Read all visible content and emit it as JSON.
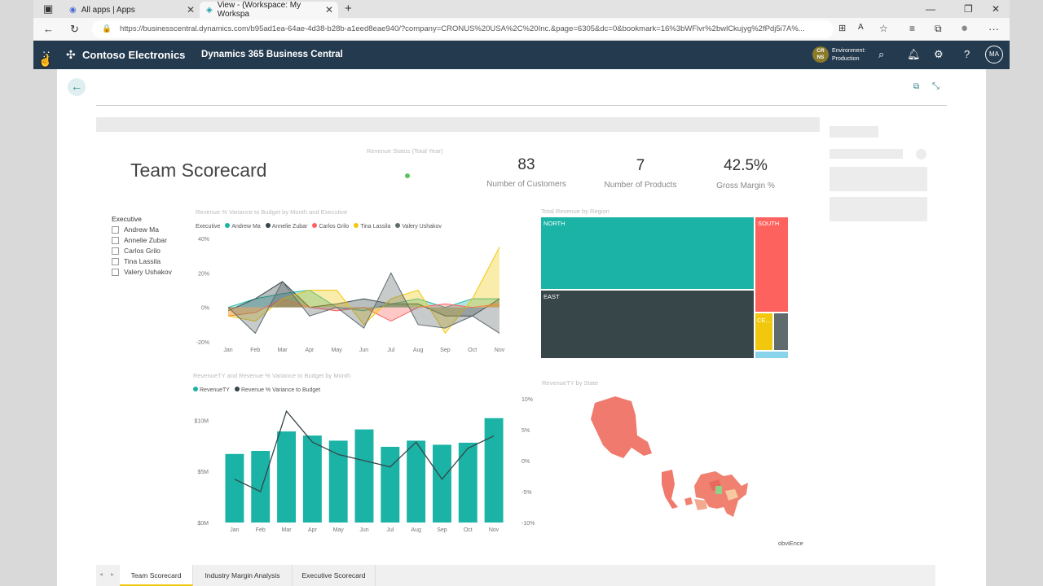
{
  "browser": {
    "tabs": [
      {
        "label": "All apps | Apps"
      },
      {
        "label": "View - (Workspace: My Workspa"
      }
    ],
    "url": "https://businesscentral.dynamics.com/b95ad1ea-64ae-4d38-b28b-a1eed8eae940/?company=CRONUS%20USA%2C%20Inc.&page=6305&dc=0&bookmark=16%3bWFlvr%2bwlCkujyg%2fPdj5i7A%..."
  },
  "appbar": {
    "brand": "Contoso Electronics",
    "product": "Dynamics 365 Business Central",
    "env_badge": "CR NS",
    "env_label": "Environment:",
    "env_value": "Production",
    "avatar": "MA"
  },
  "report": {
    "title": "Team Scorecard",
    "revenue_status_title": "Revenue Status (Total Year)",
    "kpis": [
      {
        "value": "83",
        "label": "Number of Customers"
      },
      {
        "value": "7",
        "label": "Number of Products"
      },
      {
        "value": "42.5%",
        "label": "Gross Margin %"
      }
    ],
    "slicer": {
      "title": "Executive",
      "items": [
        "Andrew Ma",
        "Annelie Zubar",
        "Carlos Grilo",
        "Tina Lassila",
        "Valery Ushakov"
      ]
    },
    "line_chart_title": "Revenue % Variance to Budget by Month and Executive",
    "line_legend_title": "Executive",
    "bar_chart_title": "RevenueTY and Revenue % Variance to Budget by Month",
    "treemap_title": "Total Revenue by Region",
    "map_title": "RevenueTY by State",
    "watermark": "obviEnce"
  },
  "page_tabs": [
    "Team Scorecard",
    "Industry Margin Analysis",
    "Executive Scorecard"
  ],
  "colors": {
    "teal": "#1ab3a6",
    "dark": "#374649",
    "red": "#fd625e",
    "yellow": "#f2c80f",
    "gray": "#5f6b6d",
    "appbar": "#243a4e"
  },
  "chart_data": [
    {
      "type": "line",
      "title": "Revenue % Variance to Budget by Month and Executive",
      "categories": [
        "Jan",
        "Feb",
        "Mar",
        "Apr",
        "May",
        "Jun",
        "Jul",
        "Aug",
        "Sep",
        "Oct",
        "Nov"
      ],
      "ylim": [
        -20,
        40
      ],
      "y_ticks": [
        "40%",
        "20%",
        "0%",
        "-20%"
      ],
      "series": [
        {
          "name": "Andrew Ma",
          "color": "#1ab3a6",
          "values": [
            0,
            5,
            8,
            10,
            0,
            -2,
            2,
            5,
            0,
            5,
            5
          ]
        },
        {
          "name": "Annelie Zubar",
          "color": "#374649",
          "values": [
            -2,
            5,
            15,
            0,
            2,
            5,
            2,
            2,
            -5,
            -5,
            5
          ]
        },
        {
          "name": "Carlos Grilo",
          "color": "#fd625e",
          "values": [
            -5,
            -3,
            5,
            0,
            -2,
            0,
            -8,
            0,
            2,
            0,
            2
          ]
        },
        {
          "name": "Tina Lassila",
          "color": "#f2c80f",
          "values": [
            -5,
            -8,
            5,
            10,
            10,
            -10,
            5,
            10,
            -15,
            5,
            35
          ]
        },
        {
          "name": "Valery Ushakov",
          "color": "#5f6b6d",
          "values": [
            0,
            -15,
            15,
            -5,
            0,
            -12,
            20,
            -10,
            -12,
            -5,
            -15
          ]
        }
      ]
    },
    {
      "type": "bar",
      "title": "RevenueTY and Revenue % Variance to Budget by Month",
      "categories": [
        "Jan",
        "Feb",
        "Mar",
        "Apr",
        "May",
        "Jun",
        "Jul",
        "Aug",
        "Sep",
        "Oct",
        "Nov"
      ],
      "series": [
        {
          "name": "RevenueTY",
          "color": "#1ab3a6",
          "values": [
            6.7,
            7.0,
            8.9,
            8.5,
            8.0,
            9.1,
            7.4,
            8.0,
            7.6,
            7.8,
            10.2
          ]
        },
        {
          "name": "Revenue % Variance to Budget",
          "color": "#374649",
          "values": [
            -3,
            -5,
            8,
            3,
            1,
            0,
            -1,
            3,
            -3,
            2,
            4
          ]
        }
      ],
      "y_ticks_left": [
        "$10M",
        "$5M",
        "$0M"
      ],
      "y_ticks_right": [
        "10%",
        "5%",
        "0%",
        "-5%",
        "-10%"
      ],
      "ylim_left": [
        0,
        10.5
      ],
      "ylim_right": [
        -10,
        10
      ]
    },
    {
      "type": "treemap",
      "title": "Total Revenue by Region",
      "categories": [
        "NORTH",
        "EAST",
        "SOUTH",
        "CE..."
      ],
      "colors": [
        "#1ab3a6",
        "#374649",
        "#fd625e",
        "#f2c80f"
      ]
    }
  ]
}
